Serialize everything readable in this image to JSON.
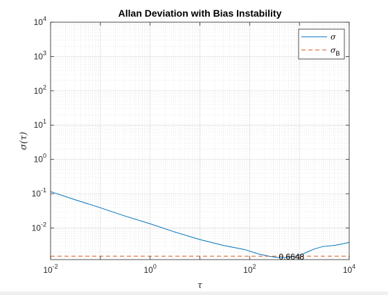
{
  "chart_data": {
    "type": "line",
    "title": "Allan Deviation with Bias Instability",
    "xlabel": "τ",
    "ylabel": "σ(τ)",
    "xscale": "log",
    "yscale": "log",
    "xlim": [
      0.01,
      10000
    ],
    "ylim": [
      0.0012,
      10000
    ],
    "grid": true,
    "minor_grid": true,
    "legend_position": "top-right",
    "x_ticks": [
      {
        "value": 0.01,
        "base": "10",
        "exp": "-2"
      },
      {
        "value": 1,
        "base": "10",
        "exp": "0"
      },
      {
        "value": 100,
        "base": "10",
        "exp": "2"
      },
      {
        "value": 10000,
        "base": "10",
        "exp": "4"
      }
    ],
    "y_ticks": [
      {
        "value": 0.01,
        "base": "10",
        "exp": "-2"
      },
      {
        "value": 0.1,
        "base": "10",
        "exp": "-1"
      },
      {
        "value": 1,
        "base": "10",
        "exp": "0"
      },
      {
        "value": 10,
        "base": "10",
        "exp": "1"
      },
      {
        "value": 100,
        "base": "10",
        "exp": "2"
      },
      {
        "value": 1000,
        "base": "10",
        "exp": "3"
      },
      {
        "value": 10000,
        "base": "10",
        "exp": "4"
      }
    ],
    "series": [
      {
        "name": "σ",
        "color": "#0072BD",
        "style": "solid",
        "x": [
          0.01,
          0.03,
          0.1,
          0.3,
          1,
          3,
          10,
          30,
          80,
          150,
          250,
          350,
          450,
          600,
          900,
          1200,
          1500,
          2000,
          3000,
          5000,
          7000,
          10000
        ],
        "y": [
          0.115,
          0.068,
          0.039,
          0.0228,
          0.0133,
          0.0078,
          0.0046,
          0.0031,
          0.00235,
          0.00175,
          0.0015,
          0.0014,
          0.00138,
          0.0014,
          0.00155,
          0.00178,
          0.00205,
          0.00245,
          0.0029,
          0.0031,
          0.0034,
          0.0038
        ]
      },
      {
        "name": "σ",
        "name_subscript": "B",
        "color": "#D95319",
        "style": "dashed",
        "x": [
          0.01,
          10000
        ],
        "y": [
          0.001502,
          0.001502
        ]
      }
    ],
    "annotations": [
      {
        "text": "0.6648",
        "x": 350,
        "y": 0.00146
      }
    ]
  }
}
